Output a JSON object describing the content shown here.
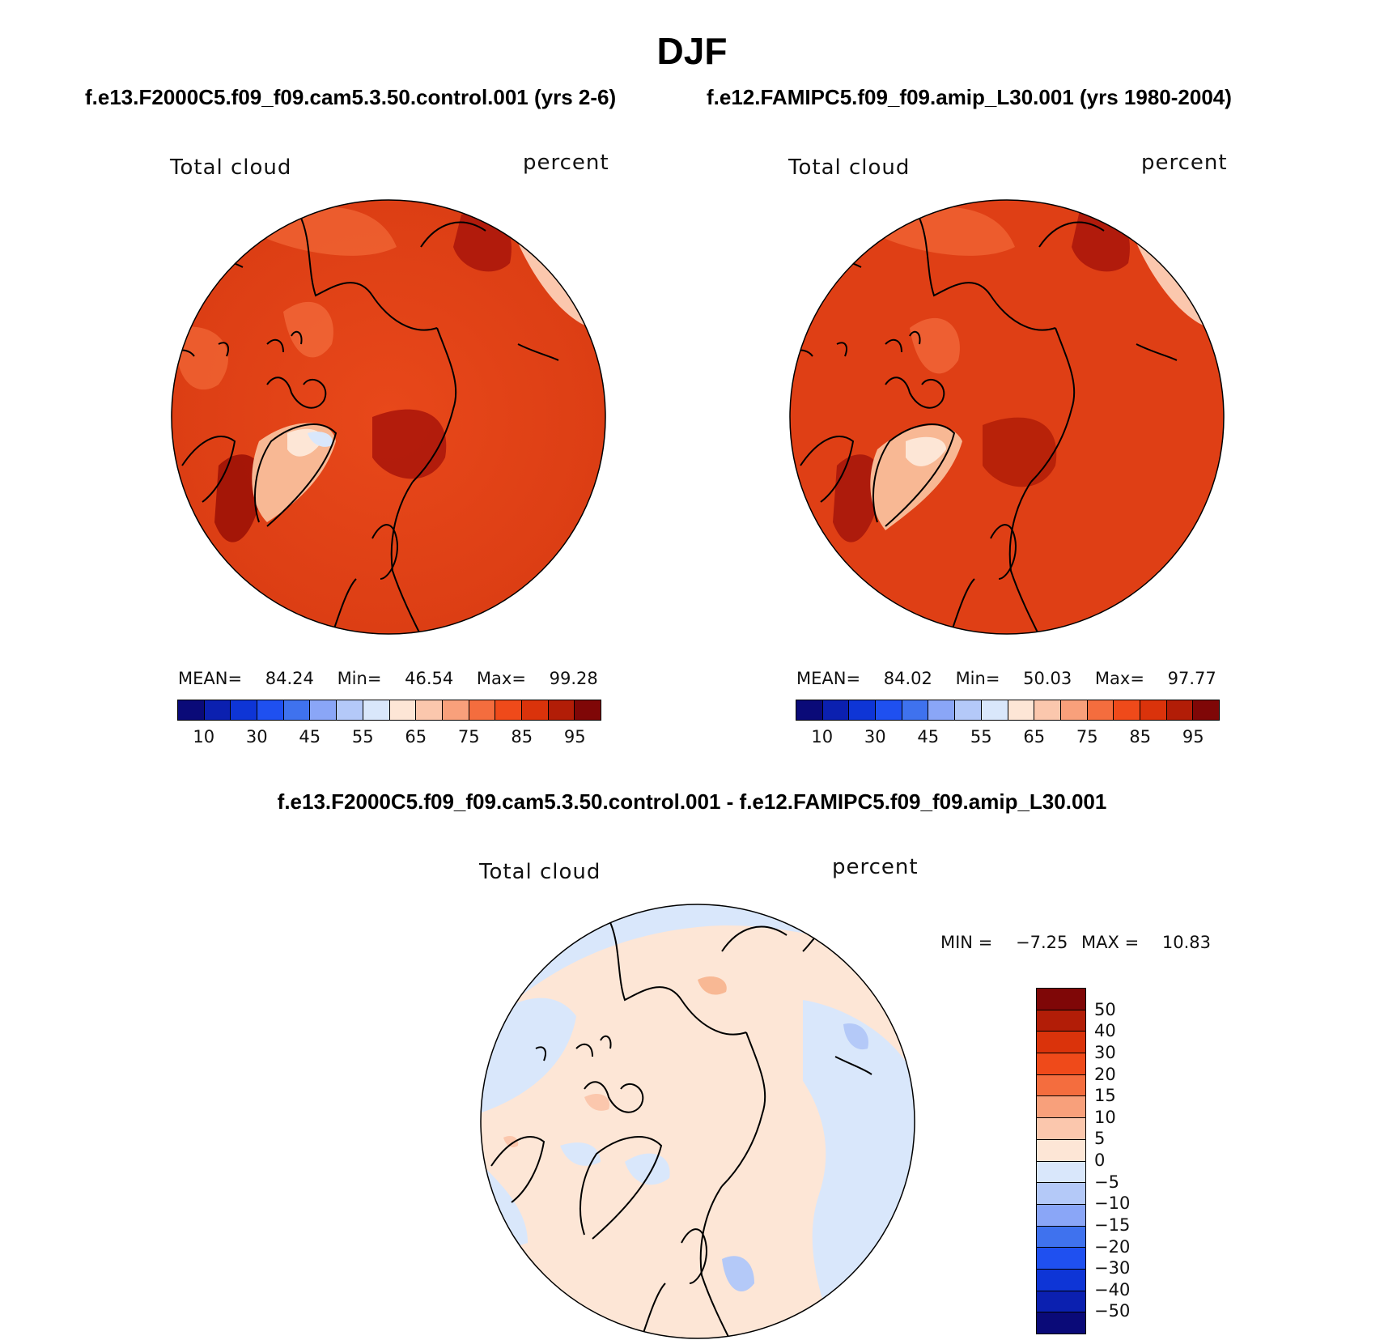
{
  "title": "DJF",
  "top_subtitle": {
    "left": "f.e13.F2000C5.f09_f09.cam5.3.50.control.001 (yrs 2-6)",
    "right": "f.e12.FAMIPC5.f09_f09.amip_L30.001 (yrs 1980-2004)"
  },
  "diff_subtitle": "f.e13.F2000C5.f09_f09.cam5.3.50.control.001 - f.e12.FAMIPC5.f09_f09.amip_L30.001",
  "panels": [
    {
      "variable": "Total cloud",
      "units": "percent",
      "mean_label": "MEAN=",
      "mean": "84.24",
      "min_label": "Min=",
      "min": "46.54",
      "max_label": "Max=",
      "max": "99.28"
    },
    {
      "variable": "Total cloud",
      "units": "percent",
      "mean_label": "MEAN=",
      "mean": "84.02",
      "min_label": "Min=",
      "min": "50.03",
      "max_label": "Max=",
      "max": "97.77"
    }
  ],
  "diff_panel": {
    "variable": "Total cloud",
    "units": "percent",
    "min_label": "MIN =",
    "min": "−7.25",
    "max_label": "MAX =",
    "max": "10.83"
  },
  "abs_colorbar": {
    "colors": [
      "#0a0a78",
      "#0b20b0",
      "#0e35d6",
      "#1f50f0",
      "#3f72ee",
      "#8aa6f7",
      "#b4c9f8",
      "#d9e7fb",
      "#fde6d6",
      "#fbc7ad",
      "#f8a07b",
      "#f46d3e",
      "#ef4a1a",
      "#da330b",
      "#b21d07",
      "#7f0707"
    ],
    "labels": [
      "10",
      "30",
      "45",
      "55",
      "65",
      "75",
      "85",
      "95"
    ]
  },
  "diff_colorbar": {
    "colors": [
      "#7f0707",
      "#b21d07",
      "#da330b",
      "#ef4a1a",
      "#f46d3e",
      "#f8a07b",
      "#fbc7ad",
      "#fde6d6",
      "#d9e7fb",
      "#b4c9f8",
      "#8aa6f7",
      "#3f72ee",
      "#1f50f0",
      "#0e35d6",
      "#0b20b0",
      "#0a0a78"
    ],
    "labels": [
      "50",
      "40",
      "30",
      "20",
      "15",
      "10",
      "5",
      "0",
      "−5",
      "−10",
      "−15",
      "−20",
      "−30",
      "−40",
      "−50"
    ]
  }
}
